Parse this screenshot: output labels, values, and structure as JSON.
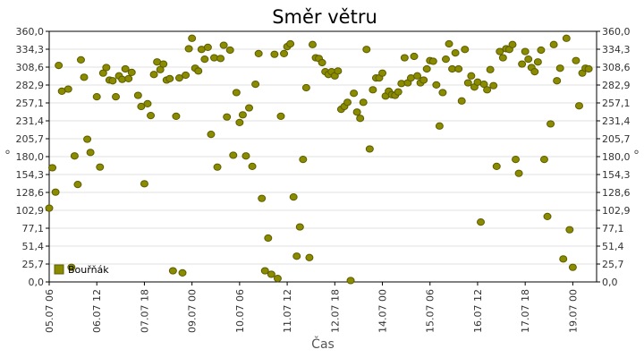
{
  "chart_data": {
    "type": "scatter",
    "title": "Směr větru",
    "xlabel": "Čas",
    "ylabel": "°",
    "ylabel_right": "°",
    "ylim": [
      0,
      360
    ],
    "y_ticks": [
      "0,0",
      "25,7",
      "51,4",
      "77,1",
      "102,9",
      "128,6",
      "154,3",
      "180,0",
      "205,7",
      "231,4",
      "257,1",
      "282,9",
      "308,6",
      "334,3",
      "360,0"
    ],
    "x_ticks": [
      "05.07 06",
      "06.07 12",
      "07.07 18",
      "09.07 00",
      "10.07 06",
      "11.07 12",
      "12.07 18",
      "14.07 00",
      "15.07 06",
      "16.07 12",
      "17.07 18",
      "19.07 00"
    ],
    "x_unit": "hours since 05.07 06:00",
    "x_range": [
      0,
      345
    ],
    "grid": true,
    "legend_position": "bottom-left",
    "colors": {
      "marker_fill": "#8b8b00",
      "marker_stroke": "#5c5c00",
      "grid": "#e0e0e0",
      "axis": "#000000"
    },
    "series": [
      {
        "name": "Bouřňák",
        "points": [
          [
            0,
            106
          ],
          [
            1,
            164
          ],
          [
            2,
            129
          ],
          [
            3,
            311
          ],
          [
            4,
            274
          ],
          [
            6,
            277
          ],
          [
            7,
            21
          ],
          [
            8,
            181
          ],
          [
            9,
            140
          ],
          [
            10,
            319
          ],
          [
            11,
            294
          ],
          [
            12,
            205
          ],
          [
            13,
            186
          ],
          [
            15,
            266
          ],
          [
            16,
            165
          ],
          [
            17,
            300
          ],
          [
            18,
            308
          ],
          [
            19,
            290
          ],
          [
            20,
            289
          ],
          [
            21,
            266
          ],
          [
            22,
            296
          ],
          [
            23,
            291
          ],
          [
            24,
            306
          ],
          [
            25,
            292
          ],
          [
            26,
            301
          ],
          [
            28,
            268
          ],
          [
            29,
            252
          ],
          [
            30,
            141
          ],
          [
            31,
            256
          ],
          [
            32,
            239
          ],
          [
            33,
            298
          ],
          [
            34,
            316
          ],
          [
            35,
            305
          ],
          [
            36,
            313
          ],
          [
            37,
            290
          ],
          [
            38,
            292
          ],
          [
            39,
            16
          ],
          [
            40,
            238
          ],
          [
            41,
            293
          ],
          [
            42,
            13
          ],
          [
            43,
            297
          ],
          [
            44,
            335
          ],
          [
            45,
            350
          ],
          [
            46,
            307
          ],
          [
            47,
            303
          ],
          [
            48,
            334
          ],
          [
            49,
            320
          ],
          [
            50,
            337
          ],
          [
            51,
            212
          ],
          [
            52,
            322
          ],
          [
            53,
            165
          ],
          [
            54,
            321
          ],
          [
            55,
            340
          ],
          [
            56,
            237
          ],
          [
            57,
            333
          ],
          [
            58,
            182
          ],
          [
            59,
            272
          ],
          [
            60,
            229
          ],
          [
            61,
            240
          ],
          [
            62,
            181
          ],
          [
            63,
            250
          ],
          [
            64,
            166
          ],
          [
            65,
            284
          ],
          [
            66,
            328
          ],
          [
            67,
            120
          ],
          [
            68,
            16
          ],
          [
            69,
            63
          ],
          [
            70,
            11
          ],
          [
            71,
            327
          ],
          [
            72,
            5
          ],
          [
            73,
            238
          ],
          [
            74,
            328
          ],
          [
            75,
            338
          ],
          [
            76,
            342
          ],
          [
            77,
            122
          ],
          [
            78,
            37
          ],
          [
            79,
            79
          ],
          [
            80,
            176
          ],
          [
            81,
            279
          ],
          [
            82,
            35
          ],
          [
            83,
            341
          ],
          [
            84,
            322
          ],
          [
            85,
            321
          ],
          [
            86,
            315
          ],
          [
            87,
            302
          ],
          [
            88,
            298
          ],
          [
            89,
            302
          ],
          [
            90,
            296
          ],
          [
            91,
            303
          ],
          [
            92,
            248
          ],
          [
            93,
            252
          ],
          [
            94,
            258
          ],
          [
            95,
            2
          ],
          [
            96,
            271
          ],
          [
            97,
            244
          ],
          [
            98,
            235
          ],
          [
            99,
            258
          ],
          [
            100,
            334
          ],
          [
            101,
            191
          ],
          [
            102,
            276
          ],
          [
            103,
            293
          ],
          [
            104,
            293
          ],
          [
            105,
            300
          ],
          [
            106,
            267
          ],
          [
            107,
            274
          ],
          [
            108,
            269
          ],
          [
            109,
            268
          ],
          [
            110,
            273
          ],
          [
            111,
            285
          ],
          [
            112,
            322
          ],
          [
            113,
            286
          ],
          [
            114,
            293
          ],
          [
            115,
            324
          ],
          [
            116,
            296
          ],
          [
            117,
            286
          ],
          [
            118,
            290
          ],
          [
            119,
            306
          ],
          [
            120,
            318
          ],
          [
            121,
            317
          ],
          [
            122,
            283
          ],
          [
            123,
            224
          ],
          [
            124,
            272
          ],
          [
            125,
            320
          ],
          [
            126,
            342
          ],
          [
            127,
            306
          ],
          [
            128,
            329
          ],
          [
            129,
            306
          ],
          [
            130,
            260
          ],
          [
            131,
            334
          ],
          [
            132,
            286
          ],
          [
            133,
            296
          ],
          [
            134,
            280
          ],
          [
            135,
            287
          ],
          [
            136,
            86
          ],
          [
            137,
            284
          ],
          [
            138,
            276
          ],
          [
            139,
            305
          ],
          [
            140,
            282
          ],
          [
            141,
            166
          ],
          [
            142,
            331
          ],
          [
            143,
            322
          ],
          [
            144,
            335
          ],
          [
            145,
            334
          ],
          [
            146,
            341
          ],
          [
            147,
            176
          ],
          [
            148,
            156
          ],
          [
            149,
            313
          ],
          [
            150,
            331
          ],
          [
            151,
            320
          ],
          [
            152,
            308
          ],
          [
            153,
            302
          ],
          [
            154,
            316
          ],
          [
            155,
            333
          ],
          [
            156,
            176
          ],
          [
            157,
            94
          ],
          [
            158,
            227
          ],
          [
            159,
            341
          ],
          [
            160,
            289
          ],
          [
            161,
            307
          ],
          [
            162,
            33
          ],
          [
            163,
            350
          ],
          [
            164,
            75
          ],
          [
            165,
            21
          ],
          [
            166,
            318
          ],
          [
            167,
            253
          ],
          [
            168,
            300
          ],
          [
            169,
            307
          ],
          [
            170,
            306
          ]
        ]
      }
    ]
  }
}
